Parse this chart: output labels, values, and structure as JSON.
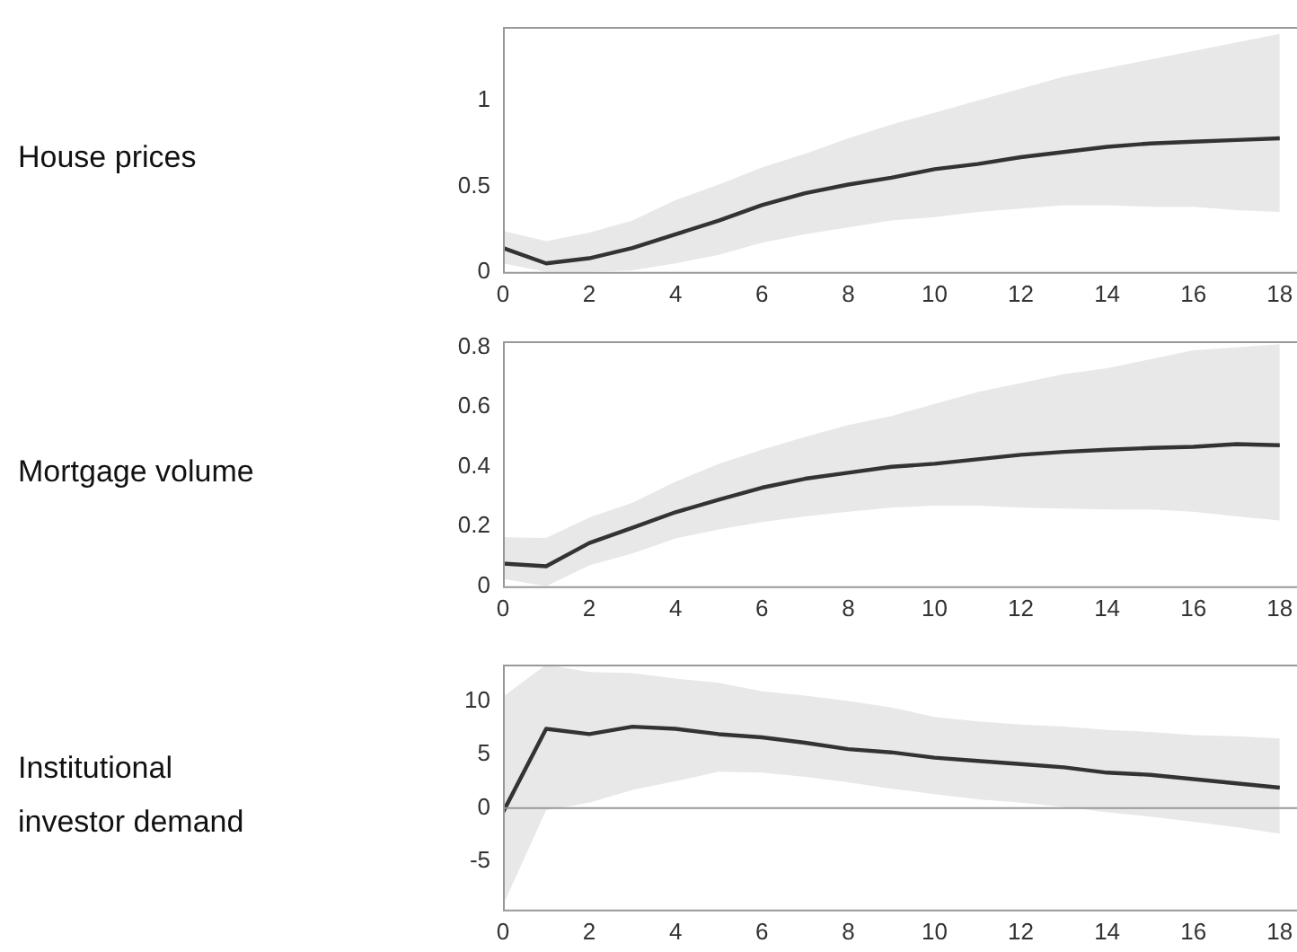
{
  "chart_data": [
    {
      "type": "line",
      "ylabel": "House prices",
      "x": [
        0,
        1,
        2,
        3,
        4,
        5,
        6,
        7,
        8,
        9,
        10,
        11,
        12,
        13,
        14,
        15,
        16,
        17,
        18
      ],
      "xlim": [
        0,
        18.4
      ],
      "xticks": [
        0,
        2,
        4,
        6,
        8,
        10,
        12,
        14,
        16,
        18
      ],
      "ylim": [
        0,
        1.43
      ],
      "yticks": [
        0,
        0.5,
        1
      ],
      "marker": "none",
      "series": [
        {
          "color": "#333333",
          "values": [
            0.14,
            0.05,
            0.08,
            0.14,
            0.22,
            0.3,
            0.39,
            0.46,
            0.51,
            0.55,
            0.6,
            0.63,
            0.67,
            0.7,
            0.73,
            0.75,
            0.76,
            0.77,
            0.78
          ],
          "lower": [
            0.05,
            0,
            0,
            0.01,
            0.05,
            0.1,
            0.17,
            0.22,
            0.26,
            0.3,
            0.32,
            0.35,
            0.37,
            0.39,
            0.39,
            0.38,
            0.38,
            0.36,
            0.35
          ],
          "upper": [
            0.24,
            0.18,
            0.23,
            0.3,
            0.42,
            0.51,
            0.61,
            0.69,
            0.78,
            0.86,
            0.93,
            1.0,
            1.07,
            1.14,
            1.19,
            1.24,
            1.29,
            1.34,
            1.39
          ]
        }
      ]
    },
    {
      "type": "line",
      "ylabel": "Mortgage volume",
      "x": [
        0,
        1,
        2,
        3,
        4,
        5,
        6,
        7,
        8,
        9,
        10,
        11,
        12,
        13,
        14,
        15,
        16,
        17,
        18
      ],
      "xlim": [
        0,
        18.4
      ],
      "xticks": [
        0,
        2,
        4,
        6,
        8,
        10,
        12,
        14,
        16,
        18
      ],
      "ylim": [
        0,
        0.82
      ],
      "yticks": [
        0,
        0.2,
        0.4,
        0.6,
        0.8
      ],
      "marker": "none",
      "series": [
        {
          "color": "#333333",
          "values": [
            0.076,
            0.067,
            0.145,
            0.196,
            0.248,
            0.29,
            0.33,
            0.36,
            0.38,
            0.4,
            0.41,
            0.425,
            0.44,
            0.45,
            0.457,
            0.463,
            0.467,
            0.476,
            0.472
          ],
          "lower": [
            0.025,
            0,
            0.07,
            0.11,
            0.16,
            0.19,
            0.215,
            0.234,
            0.25,
            0.263,
            0.27,
            0.27,
            0.263,
            0.26,
            0.257,
            0.257,
            0.25,
            0.234,
            0.22
          ],
          "upper": [
            0.164,
            0.162,
            0.23,
            0.28,
            0.35,
            0.41,
            0.457,
            0.5,
            0.54,
            0.57,
            0.61,
            0.65,
            0.68,
            0.71,
            0.73,
            0.76,
            0.79,
            0.8,
            0.81
          ]
        }
      ]
    },
    {
      "type": "line",
      "ylabel": "Institutional investor demand",
      "x": [
        0,
        1,
        2,
        3,
        4,
        5,
        6,
        7,
        8,
        9,
        10,
        11,
        12,
        13,
        14,
        15,
        16,
        17,
        18
      ],
      "xlim": [
        0,
        18.4
      ],
      "xticks": [
        0,
        2,
        4,
        6,
        8,
        10,
        12,
        14,
        16,
        18
      ],
      "ylim": [
        -9.5,
        13.4
      ],
      "yticks": [
        -5,
        0,
        5,
        10
      ],
      "marker": "none",
      "ref_lines": [
        {
          "axis": "y",
          "value": 0,
          "color": "#999999"
        }
      ],
      "series": [
        {
          "color": "#333333",
          "values": [
            -0.4,
            7.4,
            6.9,
            7.6,
            7.4,
            6.9,
            6.6,
            6.1,
            5.5,
            5.2,
            4.7,
            4.4,
            4.1,
            3.8,
            3.3,
            3.1,
            2.7,
            2.3,
            1.9
          ],
          "lower": [
            -9.1,
            -0.2,
            0.5,
            1.7,
            2.5,
            3.4,
            3.3,
            2.9,
            2.4,
            1.8,
            1.3,
            0.8,
            0.5,
            0.1,
            -0.4,
            -0.8,
            -1.3,
            -1.8,
            -2.4
          ],
          "upper": [
            10.4,
            13.4,
            12.7,
            12.6,
            12.1,
            11.7,
            10.9,
            10.5,
            10.0,
            9.4,
            8.5,
            8.1,
            7.8,
            7.6,
            7.3,
            7.1,
            6.8,
            6.7,
            6.5
          ]
        }
      ]
    }
  ]
}
